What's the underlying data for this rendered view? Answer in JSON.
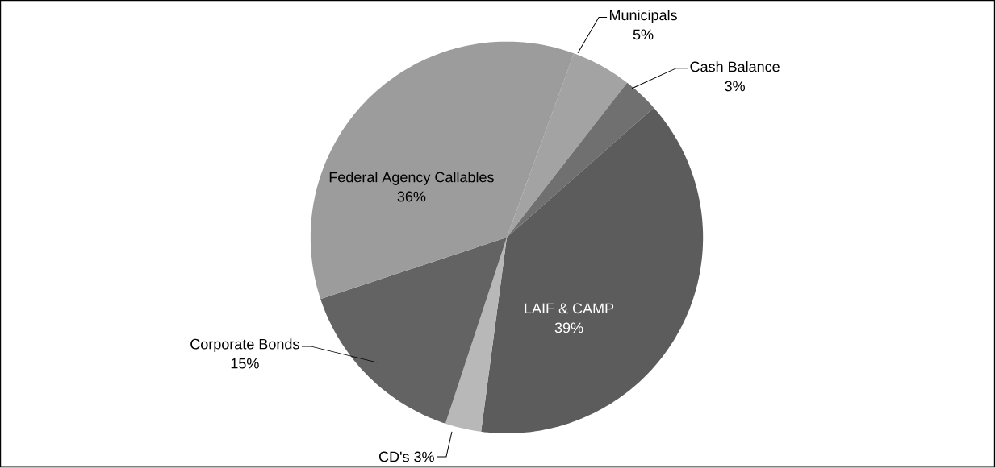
{
  "chart_data": {
    "type": "pie",
    "categories": [
      "Municipals",
      "Cash Balance",
      "LAIF & CAMP",
      "CD's",
      "Corporate Bonds",
      "Federal Agency Callables"
    ],
    "values": [
      5,
      3,
      39,
      3,
      15,
      36
    ],
    "value_labels": [
      "5%",
      "3%",
      "39%",
      "3%",
      "15%",
      "36%"
    ],
    "colors": [
      "#a3a3a3",
      "#707070",
      "#5c5c5c",
      "#b8b8b8",
      "#636363",
      "#9c9c9c"
    ]
  }
}
